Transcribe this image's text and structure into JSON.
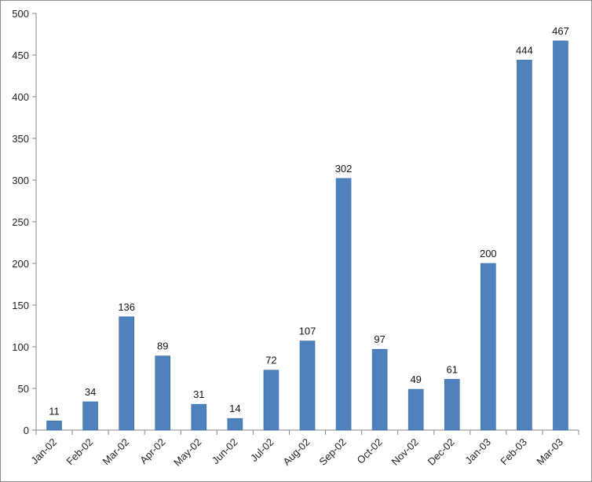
{
  "chart_data": {
    "type": "bar",
    "title": "",
    "xlabel": "",
    "ylabel": "",
    "categories": [
      "Jan-02",
      "Feb-02",
      "Mar-02",
      "Apr-02",
      "May-02",
      "Jun-02",
      "Jul-02",
      "Aug-02",
      "Sep-02",
      "Oct-02",
      "Nov-02",
      "Dec-02",
      "Jan-03",
      "Feb-03",
      "Mar-03"
    ],
    "values": [
      11,
      34,
      136,
      89,
      31,
      14,
      72,
      107,
      302,
      97,
      49,
      61,
      200,
      444,
      467
    ],
    "data_labels": [
      "11",
      "34",
      "136",
      "89",
      "31",
      "14",
      "72",
      "107",
      "302",
      "97",
      "49",
      "61",
      "200",
      "444",
      "467"
    ],
    "ylim": [
      0,
      500
    ],
    "y_ticks": [
      0,
      50,
      100,
      150,
      200,
      250,
      300,
      350,
      400,
      450,
      500
    ],
    "y_tick_labels": [
      "0",
      "50",
      "100",
      "150",
      "200",
      "250",
      "300",
      "350",
      "400",
      "450",
      "500"
    ],
    "grid": false,
    "legend": "none",
    "bar_color": "#4f81bd",
    "bar_edge_color": "#3a6aa0",
    "axis_color": "#868686"
  }
}
